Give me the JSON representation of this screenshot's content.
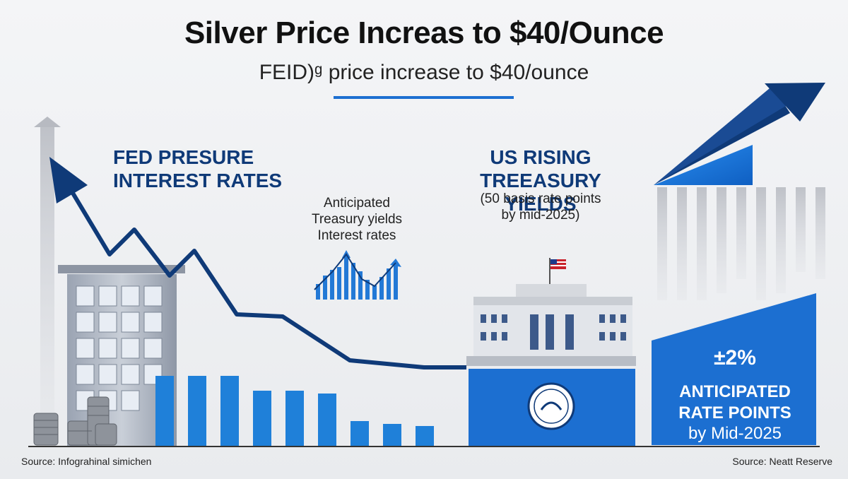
{
  "header": {
    "title": "Silver Price Increas to $40/Ounce",
    "subtitle": "FEID)ᵍ price increase to $40/ounce"
  },
  "left_panel": {
    "heading_line1": "FED PRESURE",
    "heading_line2": "INTEREST RATES"
  },
  "center_panel": {
    "line1": "Anticipated",
    "line2": "Treasury yields",
    "line3": "Interest rates"
  },
  "right_panel": {
    "heading_line1": "US RISING",
    "heading_line2": "TREEASURY YIELDS",
    "detail_line1": "(50 basis rate points",
    "detail_line2": "by mid-2025)"
  },
  "side_panel": {
    "percent": "±2%",
    "label_line1": "ANTICIPATED",
    "label_line2": "RATE POINTS",
    "label_line3": "by Mid-2025"
  },
  "footer": {
    "source_left": "Source: Infograhinal simichen",
    "source_right": "Source:  Neatt Reserve"
  },
  "colors": {
    "navy": "#0f3a78",
    "accent_blue": "#1c6fd1",
    "bar_blue": "#1f80d9"
  }
}
